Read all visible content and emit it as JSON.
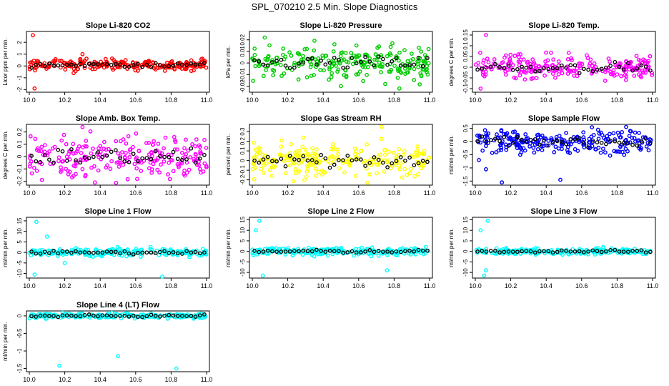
{
  "title": "SPL_070210  2.5 Min. Slope Diagnostics",
  "colors": {
    "trace_color": "#000000",
    "axis": "#000000"
  },
  "chart_data": [
    {
      "type": "scatter",
      "title": "Slope Li-820 CO2",
      "xlabel": "",
      "ylabel": "Licor ppm per min.",
      "xlim": [
        10.0,
        11.0
      ],
      "ylim": [
        -2.1,
        2.8
      ],
      "yticks": [
        -2,
        -1,
        0,
        1,
        2
      ],
      "xticks": [
        "10.0",
        "10.2",
        "10.4",
        "10.6",
        "10.8",
        "11.0"
      ],
      "color": "#ff0000",
      "series_center": 0.1,
      "spread": 0.25,
      "outliers": [
        [
          10.02,
          2.6
        ],
        [
          10.03,
          -1.9
        ],
        [
          10.3,
          1.0
        ],
        [
          10.25,
          -0.6
        ]
      ]
    },
    {
      "type": "scatter",
      "title": "Slope Li-820 Pressure",
      "xlabel": "",
      "ylabel": "kPa per min.",
      "xlim": [
        10.0,
        11.0
      ],
      "ylim": [
        -0.024,
        0.026
      ],
      "yticks": [
        -0.02,
        -0.01,
        0.0,
        0.01,
        0.02
      ],
      "xticks": [
        "10.0",
        "10.2",
        "10.4",
        "10.6",
        "10.8",
        "11.0"
      ],
      "color": "#00cc00",
      "series_center": 0.0,
      "spread": 0.008,
      "outliers": [
        [
          10.07,
          0.022
        ],
        [
          10.5,
          -0.02
        ],
        [
          10.83,
          -0.022
        ]
      ]
    },
    {
      "type": "scatter",
      "title": "Slope Li-820 Temp.",
      "xlabel": "",
      "ylabel": "degrees C per min.",
      "xlim": [
        10.0,
        11.0
      ],
      "ylim": [
        -0.11,
        0.16
      ],
      "yticks": [
        -0.1,
        -0.05,
        0.0,
        0.05,
        0.1,
        0.15
      ],
      "xticks": [
        "10.0",
        "10.2",
        "10.4",
        "10.6",
        "10.8",
        "11.0"
      ],
      "color": "#ff00ff",
      "series_center": 0.0,
      "spread": 0.03,
      "outliers": [
        [
          10.06,
          0.15
        ],
        [
          10.03,
          -0.1
        ],
        [
          10.85,
          -0.06
        ]
      ]
    },
    {
      "type": "scatter",
      "title": "Slope Amb. Box Temp.",
      "xlabel": "",
      "ylabel": "degrees C per min.",
      "xlim": [
        10.0,
        11.0
      ],
      "ylim": [
        -0.22,
        0.25
      ],
      "yticks": [
        -0.2,
        -0.1,
        0.0,
        0.1,
        0.2
      ],
      "xticks": [
        "10.0",
        "10.2",
        "10.4",
        "10.6",
        "10.8",
        "11.0"
      ],
      "color": "#ff00ff",
      "series_center": 0.0,
      "spread": 0.1,
      "outliers": [
        [
          10.3,
          0.24
        ],
        [
          10.37,
          -0.21
        ]
      ]
    },
    {
      "type": "scatter",
      "title": "Slope Gas Stream RH",
      "xlabel": "",
      "ylabel": "percent per min.",
      "xlim": [
        10.0,
        11.0
      ],
      "ylim": [
        -0.24,
        0.36
      ],
      "yticks": [
        -0.2,
        -0.1,
        0.0,
        0.1,
        0.2,
        0.3
      ],
      "xticks": [
        "10.0",
        "10.2",
        "10.4",
        "10.6",
        "10.8",
        "11.0"
      ],
      "color": "#ffff00",
      "series_center": 0.0,
      "spread": 0.09,
      "outliers": [
        [
          10.73,
          0.35
        ],
        [
          10.65,
          -0.23
        ]
      ]
    },
    {
      "type": "scatter",
      "title": "Slope Sample Flow",
      "xlabel": "",
      "ylabel": "ml/min per min.",
      "xlim": [
        10.0,
        11.0
      ],
      "ylim": [
        -1.6,
        0.6
      ],
      "yticks": [
        -1.5,
        -1.0,
        -0.5,
        0.0,
        0.5
      ],
      "xticks": [
        "10.0",
        "10.2",
        "10.4",
        "10.6",
        "10.8",
        "11.0"
      ],
      "color": "#0000ff",
      "series_center": 0.0,
      "spread": 0.25,
      "outliers": [
        [
          10.02,
          -0.7
        ],
        [
          10.06,
          -1.05
        ],
        [
          10.15,
          -1.55
        ],
        [
          10.48,
          -1.45
        ]
      ]
    },
    {
      "type": "scatter",
      "title": "Slope Line 1 Flow",
      "xlabel": "",
      "ylabel": "ml/min per min.",
      "xlim": [
        10.0,
        11.0
      ],
      "ylim": [
        -11.5,
        16
      ],
      "yticks": [
        -10,
        -5,
        0,
        5,
        10,
        15
      ],
      "xticks": [
        "10.0",
        "10.2",
        "10.4",
        "10.6",
        "10.8",
        "11.0"
      ],
      "color": "#00ffff",
      "series_center": 0.0,
      "spread": 1.0,
      "outliers": [
        [
          10.04,
          14.5
        ],
        [
          10.03,
          -10.5
        ],
        [
          10.75,
          -11.5
        ],
        [
          10.1,
          7.5
        ],
        [
          10.2,
          -5
        ]
      ]
    },
    {
      "type": "scatter",
      "title": "Slope Line 2 Flow",
      "xlabel": "",
      "ylabel": "ml/min per min.",
      "xlim": [
        10.0,
        11.0
      ],
      "ylim": [
        -12,
        15.5
      ],
      "yticks": [
        -10,
        -5,
        0,
        5,
        10,
        15
      ],
      "xticks": [
        "10.0",
        "10.2",
        "10.4",
        "10.6",
        "10.8",
        "11.0"
      ],
      "color": "#00ffff",
      "series_center": 0.0,
      "spread": 1.0,
      "outliers": [
        [
          10.04,
          14.5
        ],
        [
          10.06,
          -11.5
        ],
        [
          10.76,
          -9
        ],
        [
          10.02,
          10
        ]
      ]
    },
    {
      "type": "scatter",
      "title": "Slope Line 3 Flow",
      "xlabel": "",
      "ylabel": "ml/min per min.",
      "xlim": [
        10.0,
        11.0
      ],
      "ylim": [
        -12,
        15.5
      ],
      "yticks": [
        -10,
        -5,
        0,
        5,
        10,
        15
      ],
      "xticks": [
        "10.0",
        "10.2",
        "10.4",
        "10.6",
        "10.8",
        "11.0"
      ],
      "color": "#00ffff",
      "series_center": 0.0,
      "spread": 0.8,
      "outliers": [
        [
          10.07,
          14.5
        ],
        [
          10.05,
          -11.5
        ],
        [
          10.03,
          10
        ],
        [
          10.06,
          -9
        ]
      ]
    },
    {
      "type": "scatter",
      "title": "Slope Line 4 (LT) Flow",
      "xlabel": "",
      "ylabel": "ml/min per min.",
      "xlim": [
        10.0,
        11.0
      ],
      "ylim": [
        -1.55,
        0.1
      ],
      "yticks": [
        -1.5,
        -1.0,
        -0.5,
        0.0
      ],
      "xticks": [
        "10.0",
        "10.2",
        "10.4",
        "10.6",
        "10.8",
        "11.0"
      ],
      "color": "#00ffff",
      "series_center": 0.0,
      "spread": 0.04,
      "outliers": [
        [
          10.17,
          -1.42
        ],
        [
          10.5,
          -1.15
        ],
        [
          10.83,
          -1.5
        ]
      ]
    }
  ]
}
